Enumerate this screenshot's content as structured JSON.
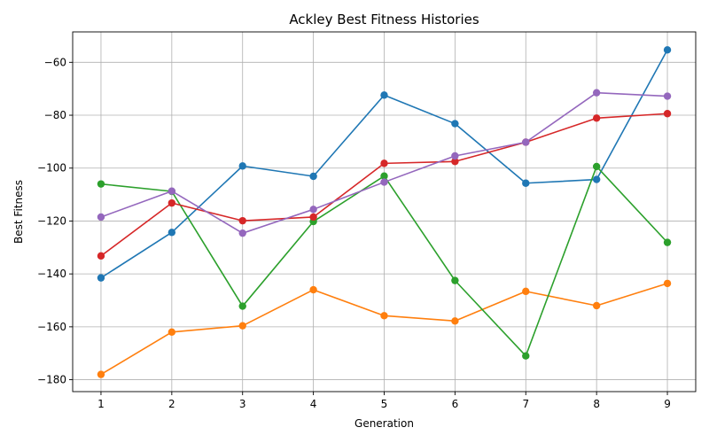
{
  "chart_data": {
    "type": "line",
    "title": "Ackley Best Fitness Histories",
    "xlabel": "Generation",
    "ylabel": "Best Fitness",
    "x": [
      1,
      2,
      3,
      4,
      5,
      6,
      7,
      8,
      9
    ],
    "xlim": [
      0.6,
      9.4
    ],
    "ylim": [
      -184.5,
      -48.5
    ],
    "xticks": [
      1,
      2,
      3,
      4,
      5,
      6,
      7,
      8,
      9
    ],
    "yticks": [
      -180,
      -160,
      -140,
      -120,
      -100,
      -80,
      -60
    ],
    "grid": true,
    "markers": "circle",
    "series": [
      {
        "color": "#1f77b4",
        "values": [
          -141.5,
          -124.3,
          -99.2,
          -103.1,
          -72.4,
          -83.2,
          -105.7,
          -104.3,
          -55.3
        ]
      },
      {
        "color": "#ff7f0e",
        "values": [
          -178.0,
          -162.0,
          -159.6,
          -146.0,
          -155.8,
          -157.8,
          -146.6,
          -152.0,
          -143.6
        ]
      },
      {
        "color": "#2ca02c",
        "values": [
          -106.0,
          -108.8,
          -152.2,
          -120.2,
          -103.0,
          -142.5,
          -171.0,
          -99.4,
          -128.1
        ]
      },
      {
        "color": "#d62728",
        "values": [
          -133.2,
          -113.2,
          -119.9,
          -118.5,
          -98.2,
          -97.5,
          -90.2,
          -81.1,
          -79.4
        ]
      },
      {
        "color": "#9467bd",
        "values": [
          -118.5,
          -108.7,
          -124.6,
          -115.6,
          -105.3,
          -95.4,
          -90.2,
          -71.5,
          -72.8
        ]
      }
    ]
  }
}
